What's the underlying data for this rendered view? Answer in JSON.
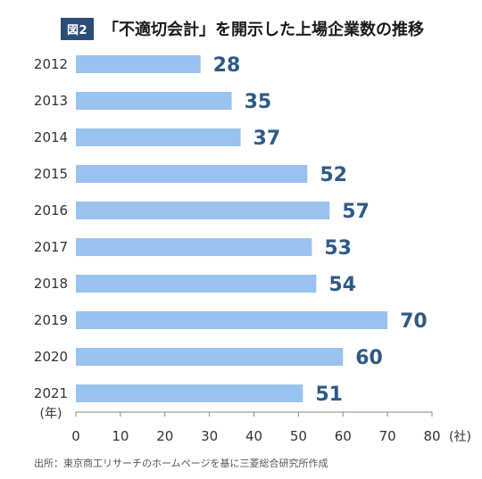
{
  "figure": {
    "badge": "図2",
    "title": "「不適切会計」を開示した上場企業数の推移",
    "source": "出所：東京商工リサーチのホームページを基に三菱総合研究所作成"
  },
  "chart_data": {
    "type": "bar",
    "orientation": "horizontal",
    "categories": [
      "2012",
      "2013",
      "2014",
      "2015",
      "2016",
      "2017",
      "2018",
      "2019",
      "2020",
      "2021"
    ],
    "values": [
      28,
      35,
      37,
      52,
      57,
      53,
      54,
      70,
      60,
      51
    ],
    "data_labels": [
      "28",
      "35",
      "37",
      "52",
      "57",
      "53",
      "54",
      "70",
      "60",
      "51"
    ],
    "xlim": [
      0,
      80
    ],
    "xticks": [
      "0",
      "10",
      "20",
      "30",
      "40",
      "50",
      "60",
      "70",
      "80"
    ],
    "xlabel": "(社)",
    "ylabel": "(年)",
    "grid": false,
    "colors": {
      "bar": "#99c3ee",
      "label": "#2f5a86",
      "axis": "#888888",
      "badge": "#2d4d78"
    }
  }
}
